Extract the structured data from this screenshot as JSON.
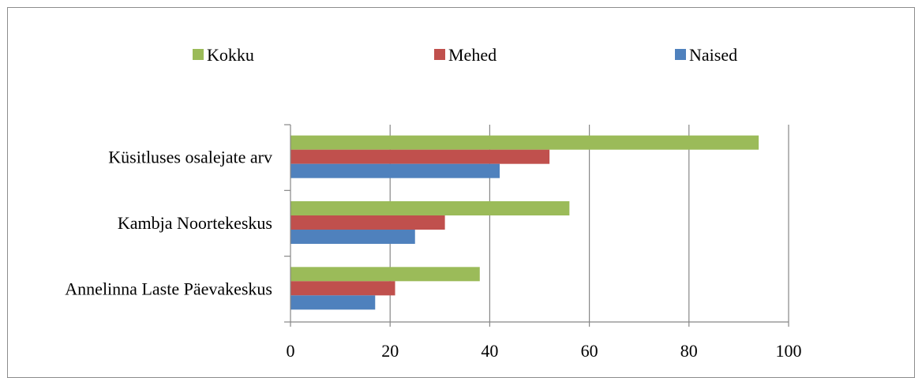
{
  "chart_data": {
    "type": "bar",
    "orientation": "horizontal",
    "categories": [
      "Küsitluses osalejate arv",
      "Kambja Noortekeskus",
      "Annelinna Laste Päevakeskus"
    ],
    "series": [
      {
        "name": "Kokku",
        "color": "#9bbb59",
        "values": [
          94,
          56,
          38
        ]
      },
      {
        "name": "Mehed",
        "color": "#c0504d",
        "values": [
          52,
          31,
          21
        ]
      },
      {
        "name": "Naised",
        "color": "#4f81bd",
        "values": [
          42,
          25,
          17
        ]
      }
    ],
    "xlim": [
      0,
      100
    ],
    "x_ticks": [
      "0",
      "20",
      "40",
      "60",
      "80",
      "100"
    ],
    "grid": "vertical",
    "legend_position": "top"
  }
}
